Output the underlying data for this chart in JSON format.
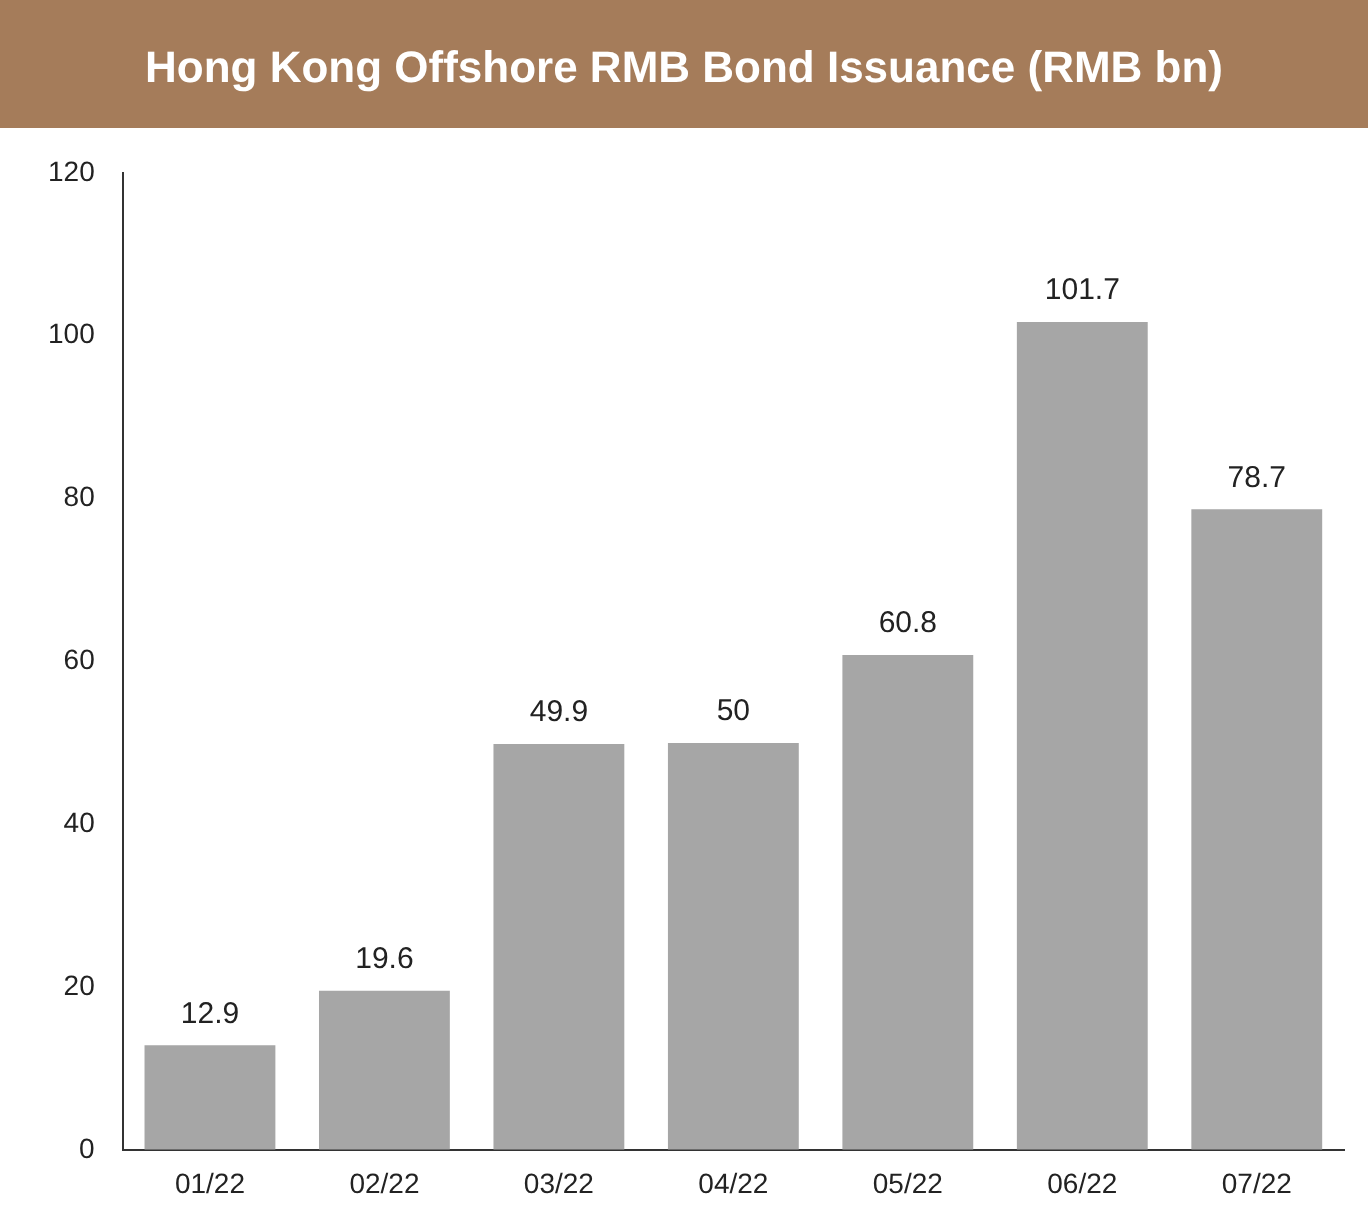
{
  "chart_data": {
    "type": "bar",
    "title": "Hong Kong Offshore RMB Bond Issuance (RMB bn)",
    "categories": [
      "01/22",
      "02/22",
      "03/22",
      "04/22",
      "05/22",
      "06/22",
      "07/22"
    ],
    "values": [
      12.9,
      19.6,
      49.9,
      50,
      60.8,
      101.7,
      78.7
    ],
    "color": "#a6a6a6",
    "ylim": [
      0,
      120
    ],
    "yticks": [
      0,
      20,
      40,
      60,
      80,
      100,
      120
    ],
    "grid": false,
    "legend": false,
    "data_labels": true
  }
}
